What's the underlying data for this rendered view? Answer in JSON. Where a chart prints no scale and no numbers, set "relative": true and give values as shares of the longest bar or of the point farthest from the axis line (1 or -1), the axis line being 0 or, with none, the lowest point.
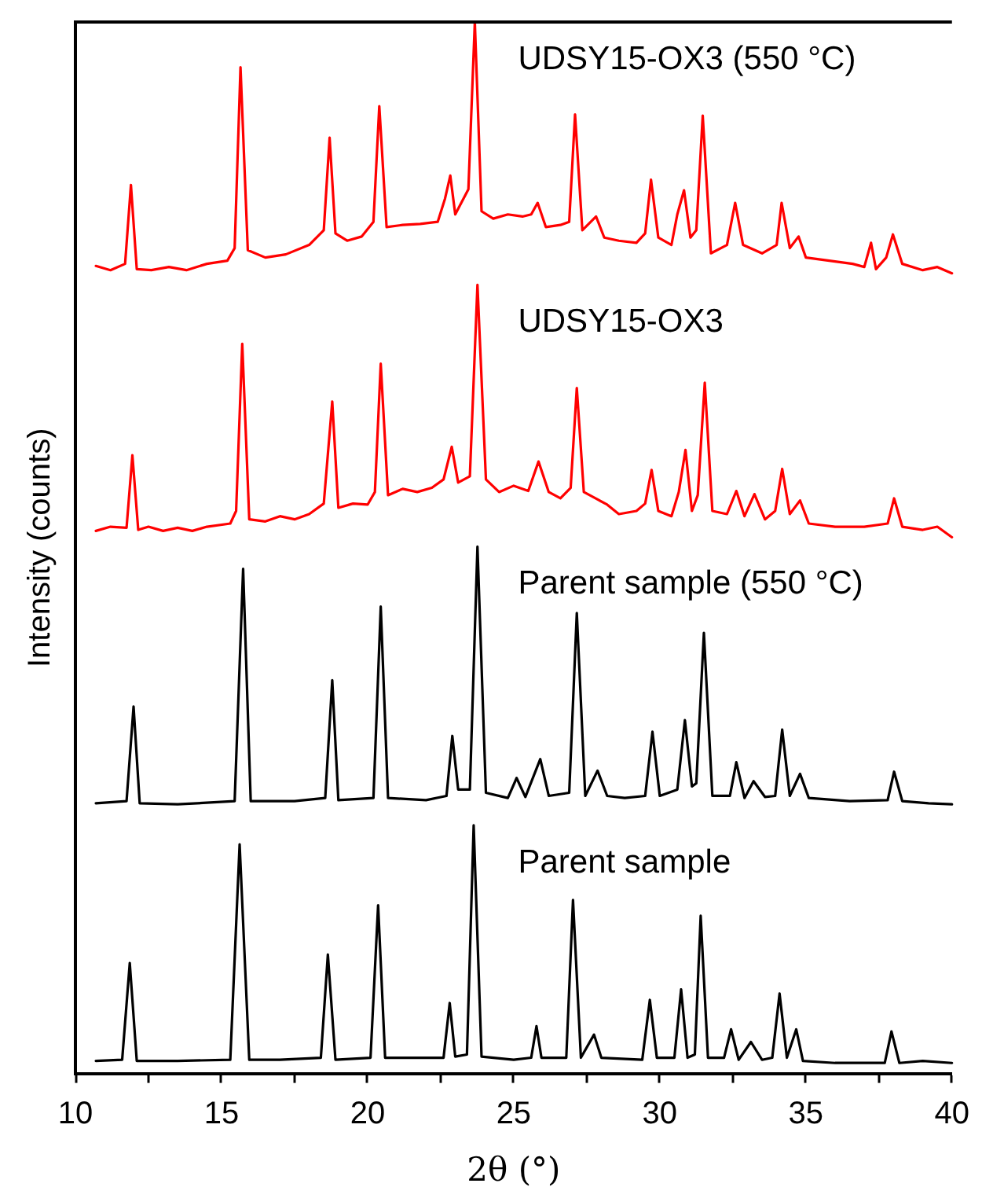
{
  "chart_data": {
    "type": "line",
    "relative": true,
    "xlabel": "2θ (°)",
    "ylabel": "Intensity (counts)",
    "xlim": [
      10,
      40
    ],
    "xticks": [
      10,
      {
        "value": 12.5,
        "label": null
      },
      15,
      {
        "value": 17.5,
        "label": null
      },
      20,
      {
        "value": 22.5,
        "label": null
      },
      25,
      {
        "value": 27.5,
        "label": null
      },
      30,
      {
        "value": 32.5,
        "label": null
      },
      35,
      {
        "value": 37.5,
        "label": null
      },
      40
    ],
    "tick_labels": "x",
    "grid": false,
    "legend": false,
    "marker": "none",
    "line_style": "solid",
    "series": [
      {
        "name": "UDSY15-OX3 (550 °C)",
        "color": "#ff0000",
        "x": [
          10.7,
          11.2,
          11.7,
          11.9,
          12.1,
          12.6,
          13.2,
          13.8,
          14.5,
          15.2,
          15.45,
          15.65,
          15.9,
          16.5,
          17.2,
          18.0,
          18.5,
          18.7,
          18.9,
          19.3,
          19.8,
          20.2,
          20.4,
          20.65,
          21.2,
          21.8,
          22.4,
          22.65,
          22.83,
          23.0,
          23.45,
          23.67,
          23.9,
          24.3,
          24.8,
          25.3,
          25.6,
          25.82,
          26.1,
          26.6,
          26.9,
          27.1,
          27.35,
          27.82,
          28.1,
          28.6,
          29.2,
          29.5,
          29.7,
          29.95,
          30.4,
          30.6,
          30.83,
          31.05,
          31.25,
          31.47,
          31.75,
          32.3,
          32.58,
          32.85,
          33.5,
          34.0,
          34.17,
          34.45,
          34.75,
          35.0,
          35.8,
          36.6,
          37.0,
          37.23,
          37.4,
          37.75,
          37.98,
          38.3,
          39.0,
          39.5,
          40
        ],
        "values": [
          0.768,
          0.764,
          0.77,
          0.845,
          0.765,
          0.764,
          0.767,
          0.764,
          0.77,
          0.773,
          0.785,
          0.957,
          0.783,
          0.776,
          0.779,
          0.788,
          0.802,
          0.89,
          0.799,
          0.792,
          0.796,
          0.81,
          0.92,
          0.805,
          0.807,
          0.808,
          0.81,
          0.832,
          0.854,
          0.817,
          0.841,
          1.0,
          0.82,
          0.813,
          0.817,
          0.815,
          0.817,
          0.828,
          0.805,
          0.807,
          0.81,
          0.912,
          0.802,
          0.815,
          0.795,
          0.792,
          0.79,
          0.799,
          0.85,
          0.795,
          0.788,
          0.817,
          0.84,
          0.795,
          0.802,
          0.911,
          0.78,
          0.788,
          0.828,
          0.788,
          0.78,
          0.788,
          0.828,
          0.785,
          0.796,
          0.776,
          0.773,
          0.77,
          0.767,
          0.79,
          0.765,
          0.776,
          0.798,
          0.77,
          0.764,
          0.767,
          0.761
        ]
      },
      {
        "name": "UDSY15-OX3",
        "color": "#ff0000",
        "x": [
          10.7,
          11.2,
          11.75,
          11.95,
          12.15,
          12.5,
          13.0,
          13.5,
          14.0,
          14.5,
          15.3,
          15.5,
          15.71,
          15.95,
          16.5,
          17.0,
          17.5,
          18.0,
          18.5,
          18.79,
          19.0,
          19.5,
          20.0,
          20.25,
          20.45,
          20.7,
          21.2,
          21.7,
          22.2,
          22.6,
          22.88,
          23.1,
          23.5,
          23.76,
          24.05,
          24.5,
          25.0,
          25.5,
          25.85,
          26.2,
          26.6,
          26.95,
          27.16,
          27.4,
          27.8,
          28.2,
          28.6,
          29.2,
          29.5,
          29.72,
          29.95,
          30.4,
          30.65,
          30.88,
          31.1,
          31.3,
          31.54,
          31.8,
          32.3,
          32.62,
          32.9,
          33.24,
          33.6,
          33.95,
          34.19,
          34.45,
          34.8,
          35.1,
          36.0,
          37.0,
          37.8,
          38.02,
          38.3,
          39.0,
          39.5,
          40
        ],
        "values": [
          0.516,
          0.52,
          0.519,
          0.588,
          0.517,
          0.52,
          0.516,
          0.519,
          0.516,
          0.52,
          0.523,
          0.535,
          0.694,
          0.527,
          0.525,
          0.53,
          0.527,
          0.532,
          0.542,
          0.639,
          0.538,
          0.542,
          0.541,
          0.553,
          0.675,
          0.55,
          0.556,
          0.553,
          0.557,
          0.565,
          0.596,
          0.562,
          0.568,
          0.75,
          0.565,
          0.553,
          0.559,
          0.554,
          0.582,
          0.553,
          0.547,
          0.557,
          0.652,
          0.553,
          0.547,
          0.541,
          0.532,
          0.535,
          0.542,
          0.574,
          0.535,
          0.53,
          0.553,
          0.593,
          0.535,
          0.55,
          0.657,
          0.535,
          0.532,
          0.554,
          0.53,
          0.551,
          0.527,
          0.535,
          0.575,
          0.532,
          0.545,
          0.523,
          0.52,
          0.52,
          0.523,
          0.547,
          0.52,
          0.517,
          0.52,
          0.51
        ]
      },
      {
        "name": "Parent sample (550 °C)",
        "color": "#000000",
        "x": [
          10.7,
          11.75,
          11.99,
          12.2,
          13.5,
          15.45,
          15.74,
          16.0,
          17.5,
          18.55,
          18.79,
          19.0,
          20.2,
          20.45,
          20.7,
          22.0,
          22.7,
          22.9,
          23.1,
          23.5,
          23.76,
          24.05,
          24.8,
          25.1,
          25.4,
          25.91,
          26.2,
          26.9,
          27.16,
          27.45,
          27.87,
          28.2,
          28.8,
          29.5,
          29.75,
          30.0,
          30.6,
          30.86,
          31.1,
          31.25,
          31.51,
          31.8,
          32.4,
          32.62,
          32.9,
          33.21,
          33.6,
          33.95,
          34.19,
          34.45,
          34.8,
          35.1,
          36.5,
          37.8,
          38.02,
          38.3,
          39.2,
          40
        ],
        "values": [
          0.257,
          0.259,
          0.349,
          0.257,
          0.256,
          0.259,
          0.48,
          0.259,
          0.259,
          0.262,
          0.374,
          0.26,
          0.262,
          0.444,
          0.262,
          0.26,
          0.264,
          0.321,
          0.27,
          0.27,
          0.501,
          0.267,
          0.262,
          0.281,
          0.263,
          0.299,
          0.264,
          0.267,
          0.438,
          0.264,
          0.288,
          0.264,
          0.262,
          0.264,
          0.325,
          0.264,
          0.27,
          0.336,
          0.273,
          0.276,
          0.419,
          0.264,
          0.264,
          0.296,
          0.262,
          0.278,
          0.263,
          0.264,
          0.327,
          0.264,
          0.285,
          0.262,
          0.259,
          0.26,
          0.287,
          0.259,
          0.257,
          0.256
        ]
      },
      {
        "name": "Parent sample",
        "color": "#000000",
        "x": [
          10.7,
          11.6,
          11.86,
          12.1,
          13.5,
          15.3,
          15.62,
          15.95,
          17.0,
          18.4,
          18.64,
          18.9,
          20.1,
          20.36,
          20.6,
          21.8,
          22.6,
          22.81,
          23.0,
          23.4,
          23.63,
          23.9,
          25.0,
          25.6,
          25.78,
          25.95,
          26.8,
          27.03,
          27.3,
          27.75,
          28.0,
          29.4,
          29.66,
          29.9,
          30.5,
          30.73,
          30.95,
          31.2,
          31.4,
          31.65,
          32.2,
          32.44,
          32.7,
          33.12,
          33.5,
          33.85,
          34.1,
          34.35,
          34.67,
          34.9,
          36.0,
          37.7,
          37.93,
          38.2,
          39.0,
          40
        ],
        "values": [
          0.012,
          0.013,
          0.105,
          0.012,
          0.012,
          0.013,
          0.218,
          0.013,
          0.013,
          0.015,
          0.113,
          0.013,
          0.015,
          0.16,
          0.015,
          0.015,
          0.015,
          0.067,
          0.016,
          0.018,
          0.236,
          0.016,
          0.013,
          0.015,
          0.045,
          0.015,
          0.015,
          0.165,
          0.015,
          0.037,
          0.015,
          0.013,
          0.07,
          0.015,
          0.015,
          0.08,
          0.015,
          0.018,
          0.15,
          0.015,
          0.015,
          0.042,
          0.013,
          0.03,
          0.013,
          0.015,
          0.076,
          0.015,
          0.042,
          0.012,
          0.01,
          0.01,
          0.04,
          0.01,
          0.012,
          0.01
        ]
      }
    ]
  }
}
